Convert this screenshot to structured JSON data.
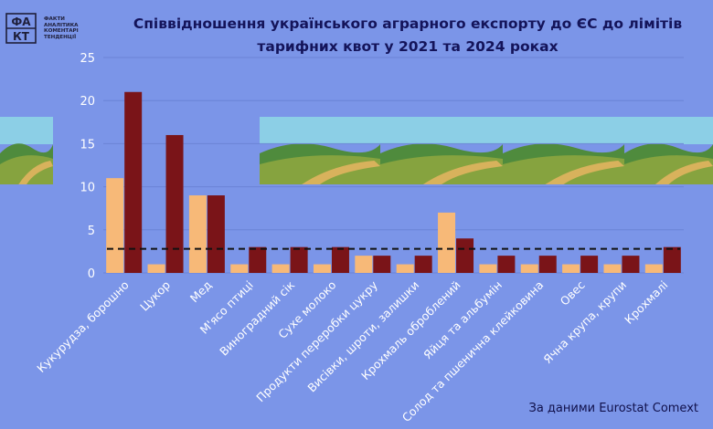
{
  "logo": {
    "lines": [
      "ФАКТИ",
      "АНАЛІТИКА",
      "КОМЕНТАРІ",
      "ТЕНДЕНЦІЇ"
    ],
    "mark_top": "ФА",
    "mark_bottom": "КТ"
  },
  "chart_data": {
    "type": "bar",
    "title_lines": [
      "Співвідношення українського аграрного експорту до ЄС до лімітів",
      "тарифних квот у 2021 та 2024 роках"
    ],
    "categories": [
      "Кукурудза, борошно",
      "Цукор",
      "Мед",
      "М'ясо птиці",
      "Виноградний сік",
      "Сухе молоко",
      "Продукти переробки цукру",
      "Висівки, шроти, залишки",
      "Крохмаль оброблений",
      "Яйця та альбумін",
      "Солод та пшенична клейковина",
      "Овес",
      "Ячна крупа, крупи",
      "Крохмалі"
    ],
    "series": [
      {
        "name": "2021",
        "color": "#f7b978",
        "values": [
          11,
          1,
          9,
          1,
          1,
          1,
          2,
          1,
          7,
          1,
          1,
          1,
          1,
          1
        ]
      },
      {
        "name": "2024",
        "color": "#7a1418",
        "values": [
          21,
          16,
          9,
          3,
          3,
          3,
          2,
          2,
          4,
          2,
          2,
          2,
          2,
          3
        ]
      }
    ],
    "reference_line": {
      "value": 2.8,
      "style": "dashed",
      "color": "#111111"
    },
    "ylim": [
      0,
      25
    ],
    "yticks": [
      0,
      5,
      10,
      15,
      20,
      25
    ],
    "grid": true,
    "grid_color": "#6b84d6",
    "xlabel": "",
    "ylabel": ""
  },
  "source": "За даними Eurostat Comext",
  "colors": {
    "background": "#7b95e8",
    "title": "#14145a",
    "tick_text": "#ffffff"
  }
}
